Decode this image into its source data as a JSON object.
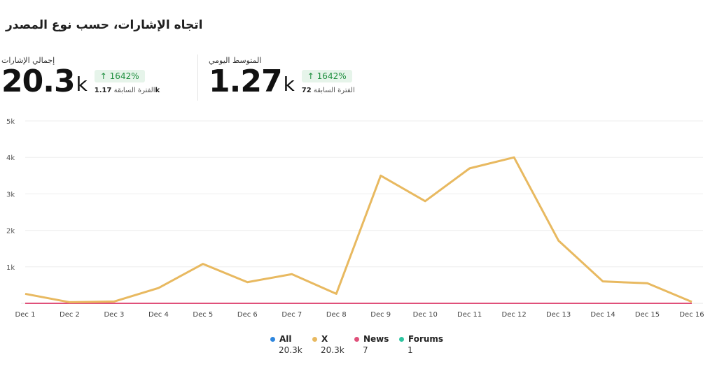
{
  "title": "اتجاه الإشارات، حسب نوع المصدر",
  "kpis": [
    {
      "label": "إجمالي الإشارات",
      "value": "20.3",
      "unit": "k",
      "change": "1642%",
      "change_arrow": "↑",
      "prev_value": "1.17",
      "prev_unit": "k",
      "prev_label": "الفترة السابقة"
    },
    {
      "label": "المتوسط اليومي",
      "value": "1.27",
      "unit": "k",
      "change": "1642%",
      "change_arrow": "↑",
      "prev_value": "72",
      "prev_unit": "",
      "prev_label": "الفترة السابقة"
    }
  ],
  "legend": [
    {
      "name": "All",
      "value": "20.3k",
      "color": "#2e86de"
    },
    {
      "name": "X",
      "value": "20.3k",
      "color": "#e8b960"
    },
    {
      "name": "News",
      "value": "7",
      "color": "#e0507a"
    },
    {
      "name": "Forums",
      "value": "1",
      "color": "#2ec4a0"
    }
  ],
  "chart_data": {
    "type": "line",
    "x": [
      "Dec 1",
      "Dec 2",
      "Dec 3",
      "Dec 4",
      "Dec 5",
      "Dec 6",
      "Dec 7",
      "Dec 8",
      "Dec 9",
      "Dec 10",
      "Dec 11",
      "Dec 12",
      "Dec 13",
      "Dec 14",
      "Dec 15",
      "Dec 16"
    ],
    "yticks": [
      {
        "v": 1000,
        "label": "1k"
      },
      {
        "v": 2000,
        "label": "2k"
      },
      {
        "v": 3000,
        "label": "3k"
      },
      {
        "v": 4000,
        "label": "4k"
      },
      {
        "v": 5000,
        "label": "5k"
      }
    ],
    "ylim": [
      0,
      5000
    ],
    "grid": true,
    "legend_position": "bottom",
    "series": [
      {
        "name": "X",
        "color": "#e8b960",
        "values": [
          260,
          30,
          50,
          420,
          1080,
          580,
          800,
          260,
          3500,
          2800,
          3700,
          4000,
          1720,
          600,
          550,
          40
        ]
      },
      {
        "name": "News",
        "color": "#e0507a",
        "values": [
          0,
          0,
          0,
          0,
          0,
          0,
          0,
          0,
          0,
          0,
          0,
          0,
          0,
          0,
          0,
          0
        ]
      },
      {
        "name": "Forums",
        "color": "#2ec4a0",
        "values": [
          0,
          0,
          0,
          0,
          0,
          0,
          0,
          0,
          0,
          0,
          0,
          0,
          0,
          0,
          0,
          0
        ]
      }
    ]
  }
}
